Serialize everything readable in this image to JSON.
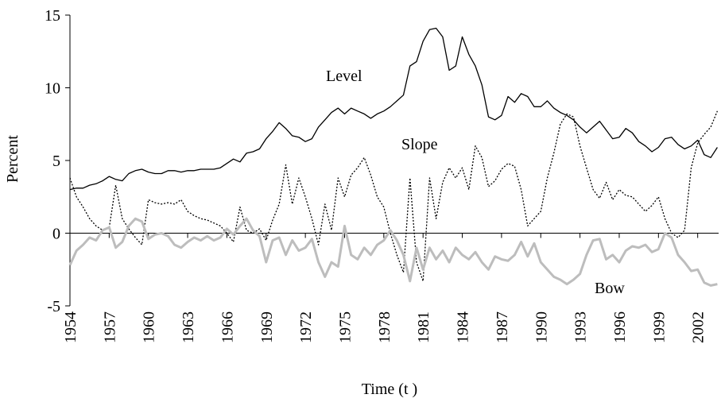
{
  "chart_data": {
    "type": "line",
    "xlabel": "Time (t )",
    "ylabel": "Percent",
    "annotations": [
      "Level",
      "Slope",
      "Bow"
    ],
    "x": [
      1954,
      1954.5,
      1955,
      1955.5,
      1956,
      1956.5,
      1957,
      1957.5,
      1958,
      1958.5,
      1959,
      1959.5,
      1960,
      1960.5,
      1961,
      1961.5,
      1962,
      1962.5,
      1963,
      1963.5,
      1964,
      1964.5,
      1965,
      1965.5,
      1966,
      1966.5,
      1967,
      1967.5,
      1968,
      1968.5,
      1969,
      1969.5,
      1970,
      1970.5,
      1971,
      1971.5,
      1972,
      1972.5,
      1973,
      1973.5,
      1974,
      1974.5,
      1975,
      1975.5,
      1976,
      1976.5,
      1977,
      1977.5,
      1978,
      1978.5,
      1979,
      1979.5,
      1980,
      1980.5,
      1981,
      1981.5,
      1982,
      1982.5,
      1983,
      1983.5,
      1984,
      1984.5,
      1985,
      1985.5,
      1986,
      1986.5,
      1987,
      1987.5,
      1988,
      1988.5,
      1989,
      1989.5,
      1990,
      1990.5,
      1991,
      1991.5,
      1992,
      1992.5,
      1993,
      1993.5,
      1994,
      1994.5,
      1995,
      1995.5,
      1996,
      1996.5,
      1997,
      1997.5,
      1998,
      1998.5,
      1999,
      1999.5,
      2000,
      2000.5,
      2001,
      2001.5,
      2002,
      2002.5,
      2003,
      2003.5
    ],
    "series": [
      {
        "name": "Level",
        "color": "#000000",
        "dash": "solid",
        "line_width": 1.3,
        "values": [
          3.0,
          3.1,
          3.1,
          3.3,
          3.4,
          3.6,
          3.9,
          3.7,
          3.6,
          4.1,
          4.3,
          4.4,
          4.2,
          4.1,
          4.1,
          4.3,
          4.3,
          4.2,
          4.3,
          4.3,
          4.4,
          4.4,
          4.4,
          4.5,
          4.8,
          5.1,
          4.9,
          5.5,
          5.6,
          5.8,
          6.5,
          7.0,
          7.6,
          7.2,
          6.7,
          6.6,
          6.3,
          6.5,
          7.3,
          7.8,
          8.3,
          8.6,
          8.2,
          8.6,
          8.4,
          8.2,
          7.9,
          8.2,
          8.4,
          8.7,
          9.1,
          9.5,
          11.5,
          11.8,
          13.2,
          14.0,
          14.1,
          13.5,
          11.2,
          11.5,
          13.5,
          12.3,
          11.5,
          10.2,
          8.0,
          7.8,
          8.1,
          9.4,
          9.0,
          9.6,
          9.4,
          8.7,
          8.7,
          9.1,
          8.6,
          8.3,
          8.1,
          7.8,
          7.3,
          6.9,
          7.3,
          7.7,
          7.1,
          6.5,
          6.6,
          7.2,
          6.9,
          6.3,
          6.0,
          5.6,
          5.9,
          6.5,
          6.6,
          6.1,
          5.8,
          6.0,
          6.4,
          5.4,
          5.2,
          5.9
        ]
      },
      {
        "name": "Slope",
        "color": "#000000",
        "dash": "dotted",
        "line_width": 1.3,
        "values": [
          3.8,
          2.5,
          1.8,
          1.0,
          0.5,
          0.2,
          0.4,
          3.3,
          1.0,
          0.3,
          -0.3,
          -0.8,
          2.3,
          2.1,
          2.0,
          2.1,
          2.0,
          2.3,
          1.5,
          1.2,
          1.0,
          0.9,
          0.7,
          0.5,
          0.0,
          -0.6,
          1.8,
          0.2,
          0.0,
          0.3,
          -0.5,
          0.9,
          2.0,
          4.7,
          2.0,
          3.8,
          2.5,
          1.0,
          -0.8,
          2.0,
          0.2,
          3.8,
          2.5,
          4.0,
          4.5,
          5.2,
          4.0,
          2.5,
          1.8,
          0.0,
          -1.5,
          -2.7,
          3.8,
          -2.0,
          -3.3,
          3.8,
          1.0,
          3.5,
          4.5,
          3.8,
          4.5,
          3.0,
          6.0,
          5.2,
          3.2,
          3.6,
          4.4,
          4.8,
          4.6,
          3.0,
          0.5,
          1.0,
          1.5,
          3.8,
          5.5,
          7.5,
          8.2,
          8.0,
          6.0,
          4.5,
          3.0,
          2.4,
          3.5,
          2.3,
          3.0,
          2.6,
          2.5,
          2.0,
          1.5,
          1.9,
          2.5,
          1.0,
          0.0,
          -0.3,
          0.2,
          4.5,
          6.2,
          6.8,
          7.3,
          8.4
        ]
      },
      {
        "name": "Bow",
        "color": "#bdbdbd",
        "dash": "solid",
        "line_width": 3,
        "values": [
          -2.2,
          -1.2,
          -0.8,
          -0.3,
          -0.5,
          0.2,
          0.4,
          -1.0,
          -0.6,
          0.5,
          1.0,
          0.8,
          -0.4,
          -0.1,
          0.0,
          -0.2,
          -0.8,
          -1.0,
          -0.6,
          -0.3,
          -0.5,
          -0.2,
          -0.5,
          -0.3,
          0.3,
          -0.1,
          0.5,
          1.0,
          0.2,
          -0.2,
          -2.0,
          -0.5,
          -0.3,
          -1.5,
          -0.5,
          -1.2,
          -1.0,
          -0.4,
          -2.0,
          -3.0,
          -2.0,
          -2.3,
          0.5,
          -1.5,
          -1.8,
          -1.0,
          -1.5,
          -0.8,
          -0.5,
          0.2,
          -0.5,
          -1.5,
          -3.3,
          -1.0,
          -2.5,
          -1.0,
          -1.8,
          -1.2,
          -2.0,
          -1.0,
          -1.5,
          -1.8,
          -1.3,
          -2.0,
          -2.5,
          -1.6,
          -1.8,
          -1.9,
          -1.5,
          -0.6,
          -1.6,
          -0.7,
          -2.0,
          -2.5,
          -3.0,
          -3.2,
          -3.5,
          -3.2,
          -2.8,
          -1.5,
          -0.5,
          -0.4,
          -1.8,
          -1.5,
          -2.0,
          -1.2,
          -0.9,
          -1.0,
          -0.8,
          -1.3,
          -1.1,
          0.0,
          -0.3,
          -1.5,
          -2.0,
          -2.6,
          -2.5,
          -3.4,
          -3.6,
          -3.5
        ]
      }
    ],
    "xlim": [
      1954,
      2003.6
    ],
    "xticks": [
      1954,
      1957,
      1960,
      1963,
      1966,
      1969,
      1972,
      1975,
      1978,
      1981,
      1984,
      1987,
      1990,
      1993,
      1996,
      1999,
      2002
    ],
    "ylim": [
      -5,
      15
    ],
    "yticks": [
      -5,
      0,
      5,
      10,
      15
    ],
    "grid": false
  }
}
